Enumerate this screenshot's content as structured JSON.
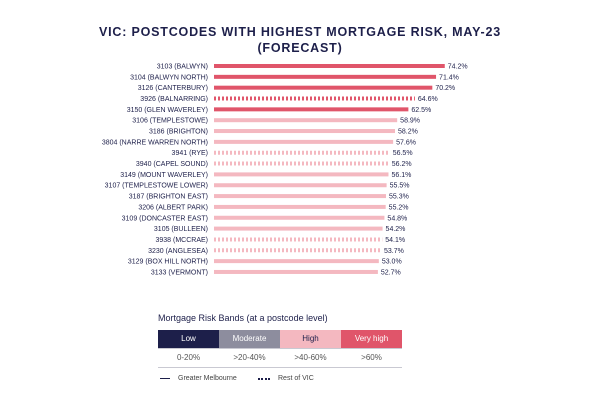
{
  "title_line1": "VIC: POSTCODES WITH HIGHEST MORTGAGE RISK, MAY-23",
  "title_line2": "(FORECAST)",
  "chart_data": {
    "type": "bar",
    "orientation": "horizontal",
    "title": "VIC: POSTCODES WITH HIGHEST MORTGAGE RISK, MAY-23 (FORECAST)",
    "categories": [
      "3103 (BALWYN)",
      "3104 (BALWYN NORTH)",
      "3126 (CANTERBURY)",
      "3926 (BALNARRING)",
      "3150 (GLEN WAVERLEY)",
      "3106 (TEMPLESTOWE)",
      "3186 (BRIGHTON)",
      "3804 (NARRE WARREN NORTH)",
      "3941 (RYE)",
      "3940 (CAPEL SOUND)",
      "3149 (MOUNT WAVERLEY)",
      "3107 (TEMPLESTOWE LOWER)",
      "3187 (BRIGHTON EAST)",
      "3206 (ALBERT PARK)",
      "3109 (DONCASTER EAST)",
      "3105 (BULLEEN)",
      "3938 (MCCRAE)",
      "3230 (ANGLESEA)",
      "3129 (BOX HILL NORTH)",
      "3133 (VERMONT)"
    ],
    "values": [
      74.2,
      71.4,
      70.2,
      64.6,
      62.5,
      58.9,
      58.2,
      57.6,
      56.5,
      56.2,
      56.1,
      55.5,
      55.3,
      55.2,
      54.8,
      54.2,
      54.1,
      53.7,
      53.0,
      52.7
    ],
    "value_labels": [
      "74.2%",
      "71.4%",
      "70.2%",
      "64.6%",
      "62.5%",
      "58.9%",
      "58.2%",
      "57.6%",
      "56.5%",
      "56.2%",
      "56.1%",
      "55.5%",
      "55.3%",
      "55.2%",
      "54.8%",
      "54.2%",
      "54.1%",
      "53.7%",
      "53.0%",
      "52.7%"
    ],
    "bands": [
      "Very high",
      "Very high",
      "Very high",
      "Very high",
      "Very high",
      "High",
      "High",
      "High",
      "High",
      "High",
      "High",
      "High",
      "High",
      "High",
      "High",
      "High",
      "High",
      "High",
      "High",
      "High"
    ],
    "region": [
      "Greater Melbourne",
      "Greater Melbourne",
      "Greater Melbourne",
      "Rest of VIC",
      "Greater Melbourne",
      "Greater Melbourne",
      "Greater Melbourne",
      "Greater Melbourne",
      "Rest of VIC",
      "Rest of VIC",
      "Greater Melbourne",
      "Greater Melbourne",
      "Greater Melbourne",
      "Greater Melbourne",
      "Greater Melbourne",
      "Greater Melbourne",
      "Rest of VIC",
      "Rest of VIC",
      "Greater Melbourne",
      "Greater Melbourne"
    ],
    "xlim": [
      0,
      80
    ],
    "unit": "%",
    "grid": false
  },
  "legend": {
    "heading": "Mortgage Risk Bands (at a postcode level)",
    "bands": [
      {
        "label": "Low",
        "range": "0-20%",
        "color": "#1d1f4a",
        "text_color": "#ffffff"
      },
      {
        "label": "Moderate",
        "range": ">20-40%",
        "color": "#8d8d9e",
        "text_color": "#ffffff"
      },
      {
        "label": "High",
        "range": ">40-60%",
        "color": "#f4b8c0",
        "text_color": "#1d1f4a"
      },
      {
        "label": "Very high",
        "range": ">60%",
        "color": "#e0556a",
        "text_color": "#ffffff"
      }
    ],
    "line_keys": {
      "greater_melbourne": "Greater Melbourne",
      "rest_of_vic": "Rest of VIC"
    }
  },
  "colors": {
    "very_high": "#e0556a",
    "high": "#f4b8c0",
    "text": "#1d1f4a"
  }
}
